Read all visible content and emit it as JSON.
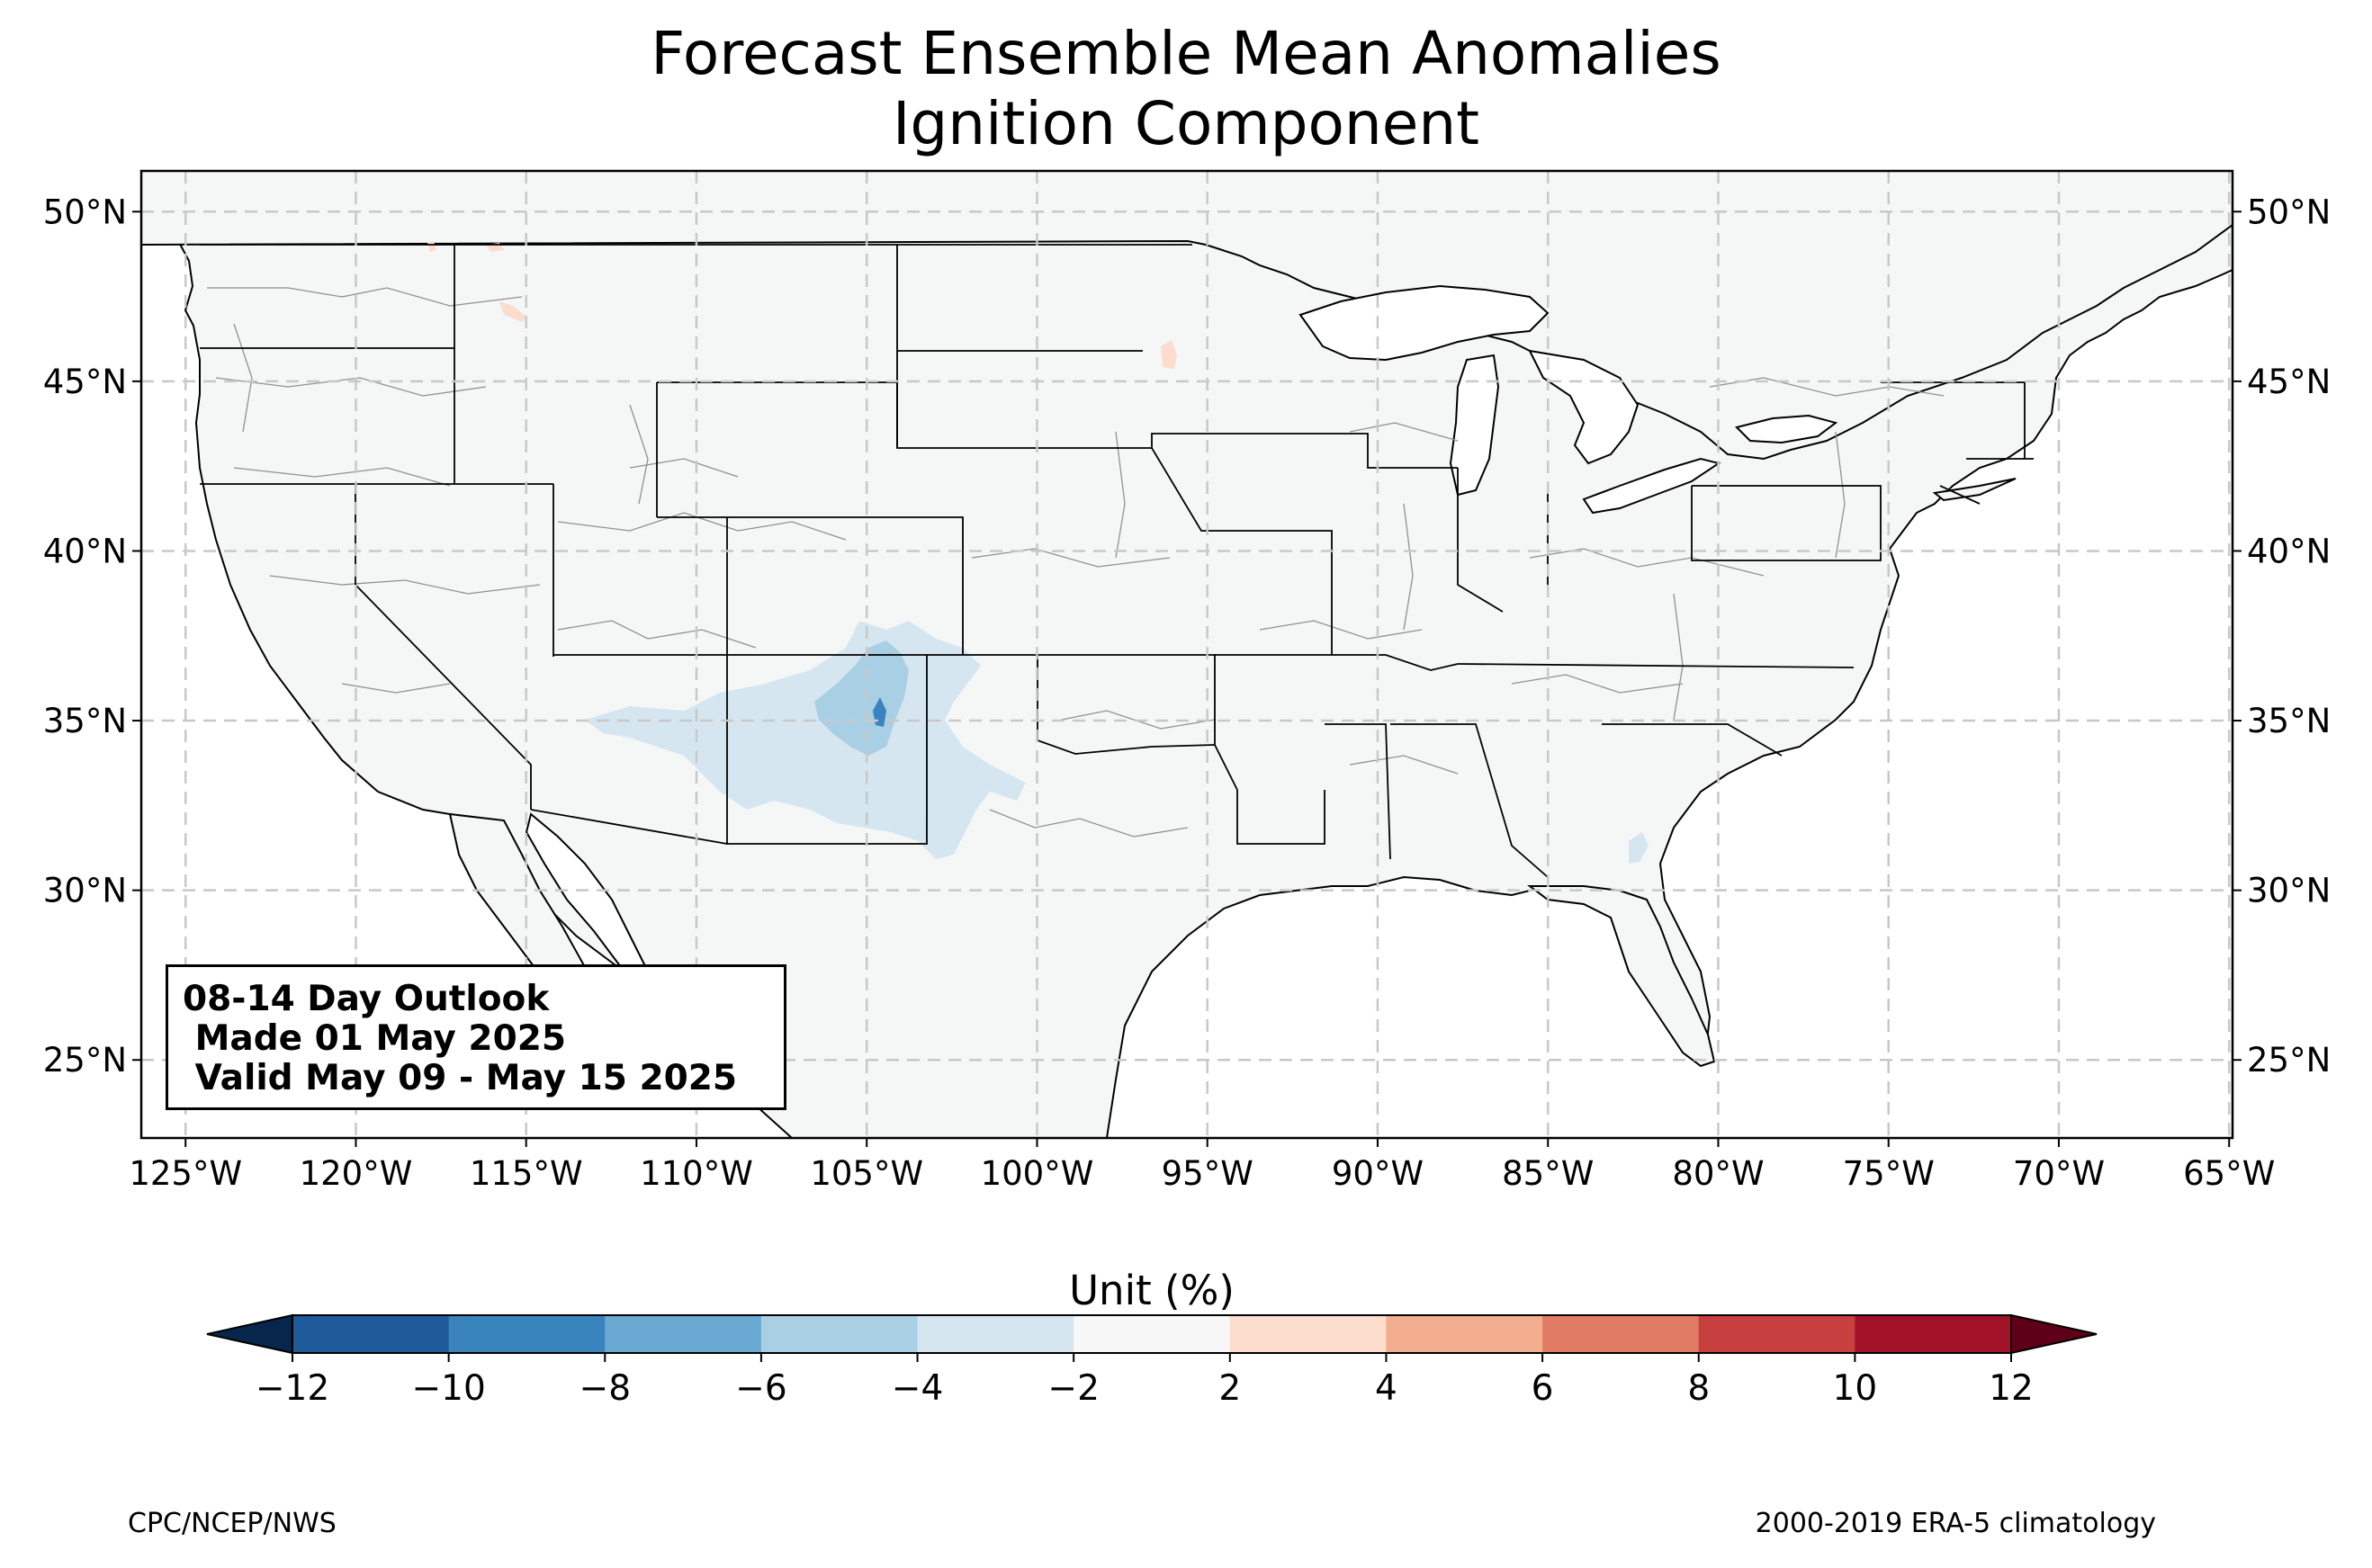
{
  "title_line1": "Forecast Ensemble Mean Anomalies",
  "title_line2": "Ignition Component",
  "map": {
    "projection": "PlateCarree",
    "lon_range": [
      -126.3,
      -64.9
    ],
    "lat_range": [
      22.7,
      51.2
    ],
    "grid": "dashed gray",
    "lon_ticks": [
      {
        "value": -125,
        "label": "125°W"
      },
      {
        "value": -120,
        "label": "120°W"
      },
      {
        "value": -115,
        "label": "115°W"
      },
      {
        "value": -110,
        "label": "110°W"
      },
      {
        "value": -105,
        "label": "105°W"
      },
      {
        "value": -100,
        "label": "100°W"
      },
      {
        "value": -95,
        "label": "95°W"
      },
      {
        "value": -90,
        "label": "90°W"
      },
      {
        "value": -85,
        "label": "85°W"
      },
      {
        "value": -80,
        "label": "80°W"
      },
      {
        "value": -75,
        "label": "75°W"
      },
      {
        "value": -70,
        "label": "70°W"
      },
      {
        "value": -65,
        "label": "65°W"
      }
    ],
    "lat_ticks": [
      {
        "value": 50,
        "label": "50°N"
      },
      {
        "value": 45,
        "label": "45°N"
      },
      {
        "value": 40,
        "label": "40°N"
      },
      {
        "value": 35,
        "label": "35°N"
      },
      {
        "value": 30,
        "label": "30°N"
      },
      {
        "value": 25,
        "label": "25°N"
      }
    ],
    "land_color": "#f5f7f7",
    "state_border_color": "#000000",
    "county_border_color": "#909090"
  },
  "outlook_box": {
    "line1": "08-14 Day Outlook",
    "line2": " Made 01 May 2025",
    "line3": " Valid May 09 - May 15 2025"
  },
  "colorbar": {
    "label": "Unit (%)",
    "ticks": [
      "−12",
      "−10",
      "−8",
      "−6",
      "−4",
      "−2",
      "2",
      "4",
      "6",
      "8",
      "10",
      "12"
    ],
    "bins": [
      {
        "from": -12,
        "to": -10,
        "color": "#1f5a9b"
      },
      {
        "from": -10,
        "to": -8,
        "color": "#3a84bd"
      },
      {
        "from": -8,
        "to": -6,
        "color": "#6aaad2"
      },
      {
        "from": -6,
        "to": -4,
        "color": "#a9cfe5"
      },
      {
        "from": -4,
        "to": -2,
        "color": "#d6e6f0"
      },
      {
        "from": -2,
        "to": 2,
        "color": "#f7f7f7"
      },
      {
        "from": 2,
        "to": 4,
        "color": "#fbdccd"
      },
      {
        "from": 4,
        "to": 6,
        "color": "#f3ad8f"
      },
      {
        "from": 6,
        "to": 8,
        "color": "#e07c65"
      },
      {
        "from": 8,
        "to": 10,
        "color": "#c83f3f"
      },
      {
        "from": 10,
        "to": 12,
        "color": "#a11229"
      }
    ],
    "under_color": "#08264c",
    "over_color": "#5e0018"
  },
  "anomaly_regions": [
    {
      "name": "southwest",
      "level": -4,
      "color": "#d6e6f0"
    },
    {
      "name": "new-mexico-core",
      "level": -6,
      "color": "#a9cfe5"
    },
    {
      "name": "new-mexico-peak",
      "level": -8,
      "color": "#3a84bd"
    },
    {
      "name": "georgia",
      "level": -4,
      "color": "#d6e6f0"
    },
    {
      "name": "minnesota",
      "level": 2,
      "color": "#fbdccd"
    },
    {
      "name": "idaho",
      "level": 2,
      "color": "#fbdccd"
    }
  ],
  "footer_left": "CPC/NCEP/NWS",
  "footer_right": "2000-2019 ERA-5 climatology"
}
